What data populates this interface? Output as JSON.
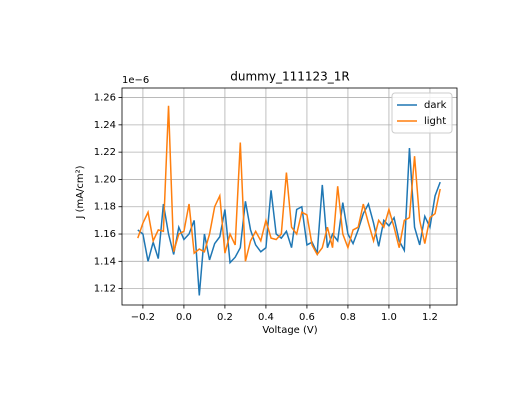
{
  "chart_data": {
    "type": "line",
    "title": "dummy_111123_1R",
    "xlabel": "Voltage (V)",
    "ylabel": "J (mA/cm²)",
    "y_offset_label": "1e−6",
    "x": [
      -0.225,
      -0.2,
      -0.175,
      -0.15,
      -0.125,
      -0.1,
      -0.075,
      -0.05,
      -0.025,
      0,
      0.025,
      0.05,
      0.075,
      0.1,
      0.125,
      0.15,
      0.175,
      0.2,
      0.225,
      0.25,
      0.275,
      0.3,
      0.325,
      0.35,
      0.375,
      0.4,
      0.425,
      0.45,
      0.475,
      0.5,
      0.525,
      0.55,
      0.575,
      0.6,
      0.625,
      0.65,
      0.675,
      0.7,
      0.725,
      0.75,
      0.775,
      0.8,
      0.825,
      0.85,
      0.875,
      0.9,
      0.925,
      0.95,
      0.975,
      1.0,
      1.025,
      1.05,
      1.075,
      1.1,
      1.125,
      1.15,
      1.175,
      1.2,
      1.225,
      1.25
    ],
    "series": [
      {
        "name": "dark",
        "color": "#1f77b4",
        "values": [
          1.163,
          1.16,
          1.14,
          1.154,
          1.142,
          1.182,
          1.16,
          1.145,
          1.165,
          1.156,
          1.16,
          1.17,
          1.115,
          1.16,
          1.141,
          1.153,
          1.158,
          1.178,
          1.139,
          1.143,
          1.15,
          1.184,
          1.163,
          1.152,
          1.147,
          1.15,
          1.192,
          1.16,
          1.157,
          1.162,
          1.15,
          1.178,
          1.18,
          1.152,
          1.154,
          1.146,
          1.196,
          1.15,
          1.16,
          1.155,
          1.183,
          1.16,
          1.153,
          1.163,
          1.175,
          1.182,
          1.168,
          1.151,
          1.17,
          1.166,
          1.172,
          1.155,
          1.148,
          1.223,
          1.165,
          1.152,
          1.173,
          1.165,
          1.188,
          1.198
        ]
      },
      {
        "name": "light",
        "color": "#ff7f0e",
        "values": [
          1.157,
          1.168,
          1.176,
          1.155,
          1.163,
          1.162,
          1.254,
          1.147,
          1.16,
          1.162,
          1.182,
          1.146,
          1.149,
          1.147,
          1.16,
          1.18,
          1.188,
          1.146,
          1.16,
          1.152,
          1.227,
          1.14,
          1.155,
          1.162,
          1.155,
          1.17,
          1.157,
          1.156,
          1.16,
          1.205,
          1.165,
          1.16,
          1.176,
          1.174,
          1.152,
          1.145,
          1.15,
          1.165,
          1.15,
          1.195,
          1.16,
          1.15,
          1.163,
          1.165,
          1.182,
          1.168,
          1.155,
          1.17,
          1.165,
          1.178,
          1.165,
          1.15,
          1.17,
          1.172,
          1.217,
          1.17,
          1.153,
          1.172,
          1.175,
          1.193
        ]
      }
    ],
    "xlim": [
      -0.302,
      1.332
    ],
    "ylim": [
      1.108,
      1.267
    ],
    "xticks": [
      {
        "value": -0.2,
        "label": "−0.2"
      },
      {
        "value": 0,
        "label": "0.0"
      },
      0.2,
      0.4,
      0.6,
      0.8,
      {
        "value": 1.0,
        "label": "1.0"
      },
      1.2
    ],
    "yticks": [
      1.12,
      1.14,
      1.16,
      1.18,
      {
        "value": 1.2,
        "label": "1.20"
      },
      1.22,
      1.24,
      1.26
    ],
    "grid": true,
    "legend": "upper right"
  }
}
